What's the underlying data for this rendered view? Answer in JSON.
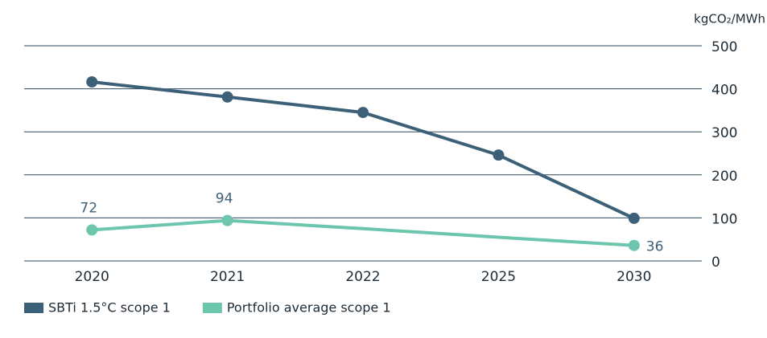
{
  "chart_data": {
    "type": "line",
    "y_axis_label": "kgCO₂/MWh",
    "categories": [
      "2020",
      "2021",
      "2022",
      "2025",
      "2030"
    ],
    "series": [
      {
        "name": "SBTi 1.5°C scope 1",
        "color": "#3d6079",
        "values": [
          416,
          381,
          345,
          246,
          99
        ]
      },
      {
        "name": "Portfolio average scope 1",
        "color": "#6cc5ad",
        "values": [
          72,
          94,
          75,
          55,
          36
        ],
        "value_labels": [
          "72",
          "94",
          null,
          null,
          "36"
        ]
      }
    ],
    "ylim": [
      0,
      500
    ],
    "yticks": [
      0,
      100,
      200,
      300,
      400,
      500
    ],
    "grid": true,
    "legend": "bottom-left"
  }
}
